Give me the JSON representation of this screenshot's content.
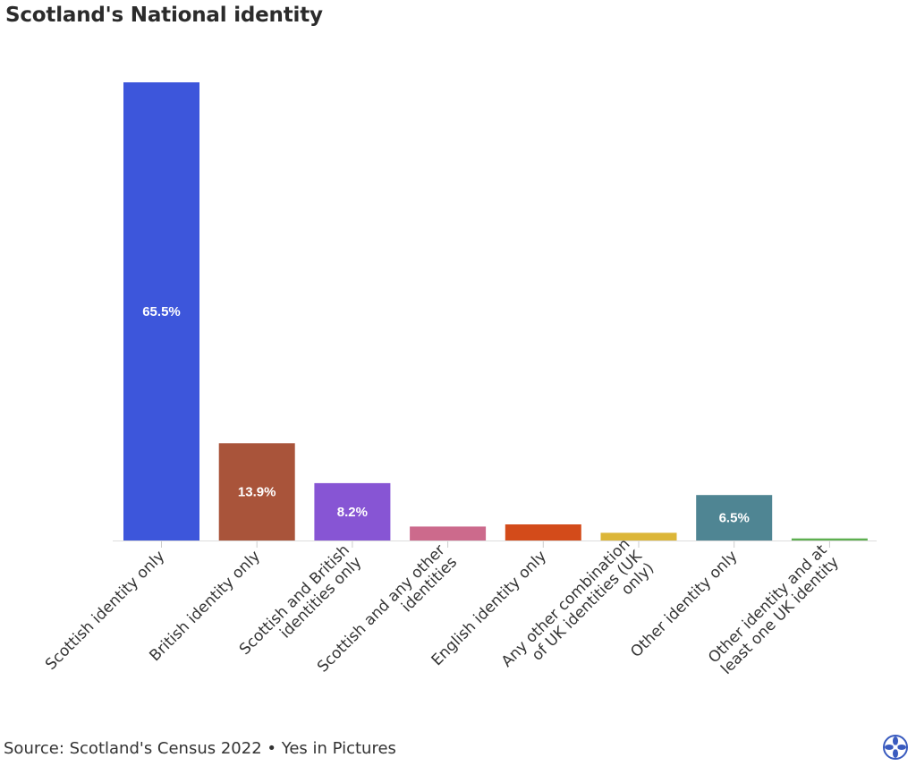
{
  "title": "Scotland's National identity",
  "footer": {
    "source": "Source: Scotland's Census 2022 • Yes in Pictures"
  },
  "logo": {
    "icon": "saltire-flower-logo-icon",
    "color": "#3a5bbf"
  },
  "chart_data": {
    "type": "bar",
    "title": "Scotland's National identity",
    "xlabel": "",
    "ylabel": "",
    "ylim": [
      0,
      65.5
    ],
    "grid": false,
    "categories": [
      "Scottish identity only",
      "British identity only",
      "Scottish and British identities only",
      "Scottish and any other identities",
      "English identity only",
      "Any other combination of UK identities (UK only)",
      "Other identity only",
      "Other identity and at least one UK identity"
    ],
    "values": [
      65.5,
      13.9,
      8.2,
      2.0,
      2.3,
      1.1,
      6.5,
      0.3
    ],
    "data_labels": [
      "65.5%",
      "13.9%",
      "8.2%",
      "",
      "",
      "",
      "6.5%",
      ""
    ],
    "colors": [
      "#3d56db",
      "#a9543a",
      "#8755d4",
      "#cc6a8c",
      "#d34b1a",
      "#dcb638",
      "#4f8593",
      "#5daf4f"
    ]
  }
}
